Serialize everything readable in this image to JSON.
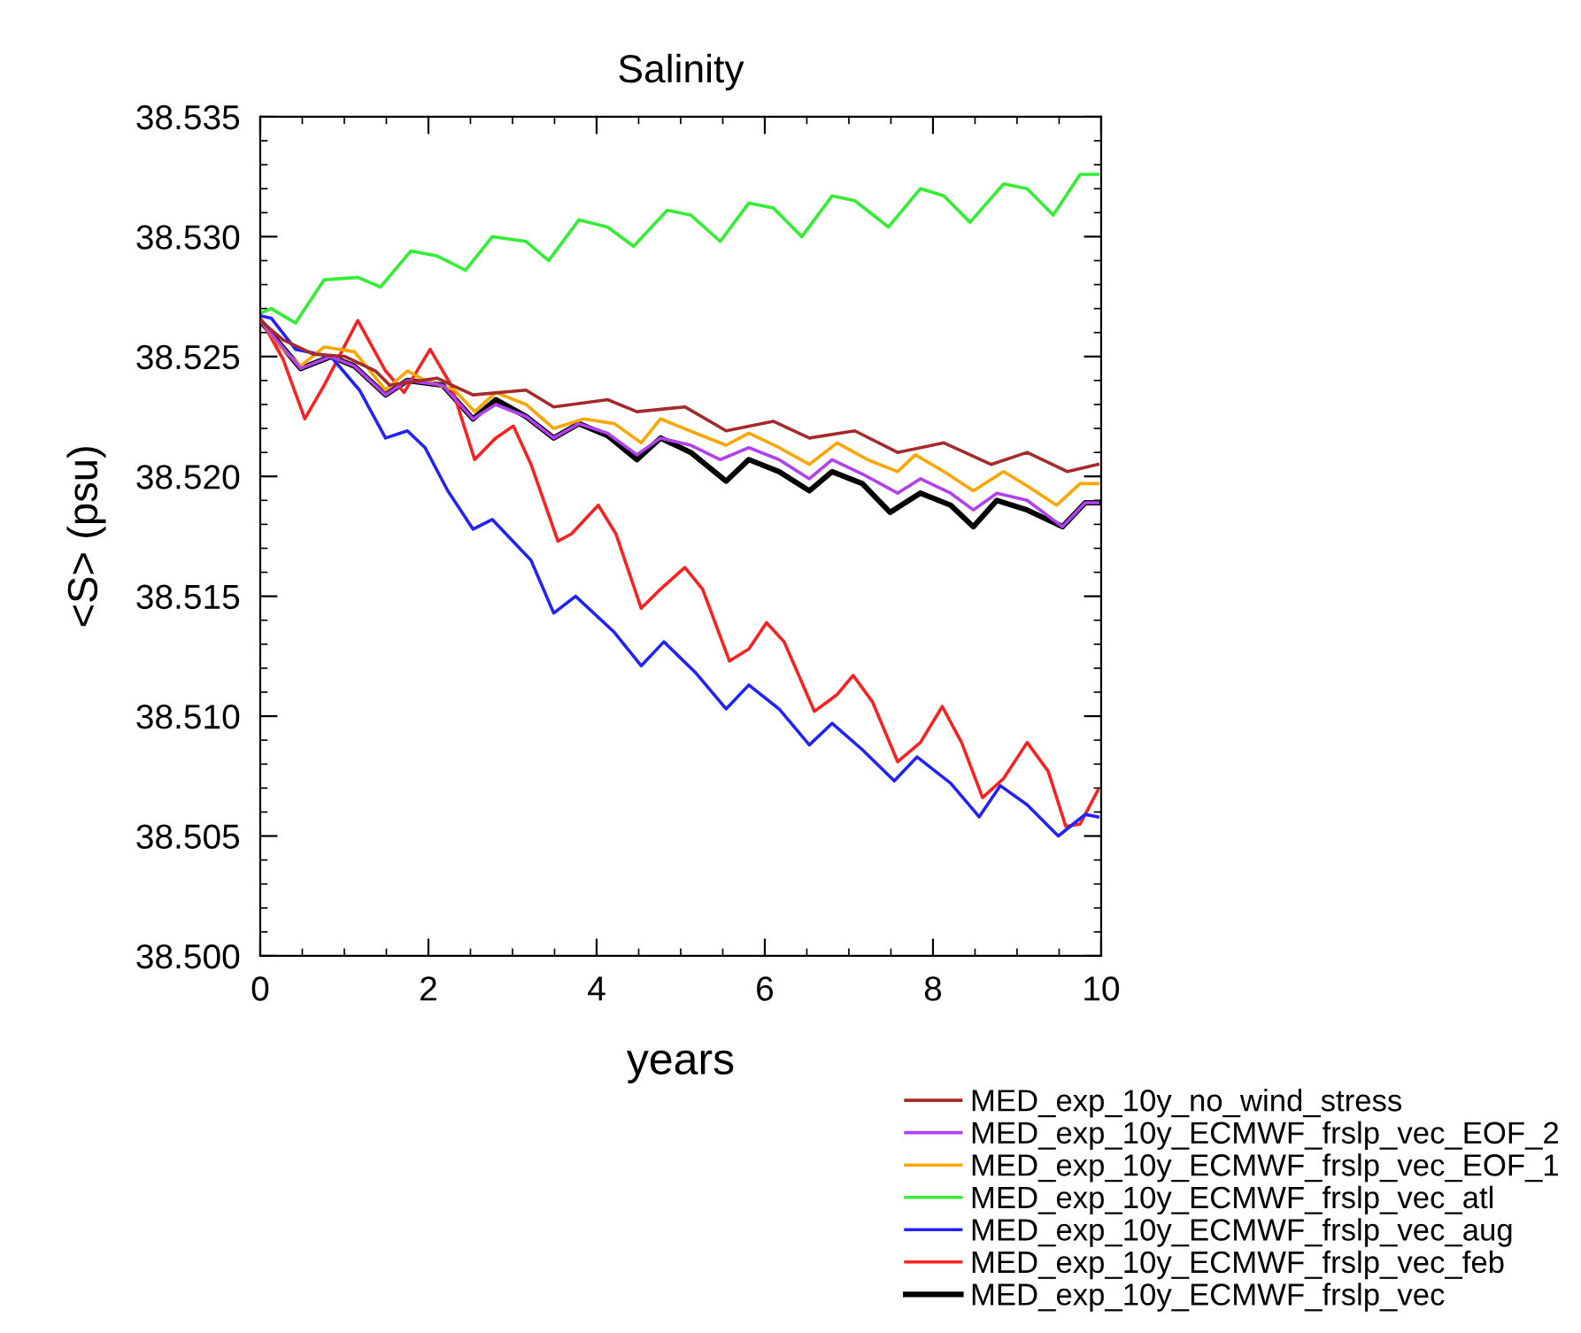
{
  "chart_data": {
    "type": "line",
    "title": "Salinity",
    "xlabel": "years",
    "ylabel": "<S> (psu)",
    "xlim": [
      0,
      10
    ],
    "xticks": [
      0,
      2,
      4,
      6,
      8,
      10
    ],
    "ylim": [
      38.5,
      38.535
    ],
    "yticks": [
      {
        "value": 38.5,
        "label": "38.500"
      },
      38.505,
      {
        "value": 38.51,
        "label": "38.510"
      },
      38.515,
      {
        "value": 38.52,
        "label": "38.520"
      },
      38.525,
      {
        "value": 38.53,
        "label": "38.530"
      },
      38.535
    ],
    "grid": false,
    "legend": "bottom right",
    "marker": "none",
    "line_style": "solid",
    "series": [
      {
        "name": "MED_exp_10y_no_wind_stress",
        "color": "#a52a2a",
        "x": [
          0,
          0.27,
          0.63,
          1.01,
          1.37,
          1.54,
          2.1,
          2.53,
          3.16,
          3.49,
          4.13,
          4.48,
          5.05,
          5.54,
          6.1,
          6.53,
          7.07,
          7.58,
          8.13,
          8.69,
          9.12,
          9.6,
          9.96
        ],
        "values": [
          38.5265,
          38.5257,
          38.5251,
          38.525,
          38.5244,
          38.5238,
          38.5241,
          38.5234,
          38.5236,
          38.5229,
          38.5232,
          38.5227,
          38.5229,
          38.5219,
          38.5223,
          38.5216,
          38.5219,
          38.521,
          38.5214,
          38.5205,
          38.521,
          38.5202,
          38.5205
        ]
      },
      {
        "name": "MED_exp_10y_ECMWF_frslp_vec_EOF_2",
        "color": "#b040f0",
        "x": [
          0,
          0.48,
          0.84,
          1.12,
          1.49,
          1.75,
          2.17,
          2.53,
          2.8,
          3.16,
          3.49,
          3.79,
          4.13,
          4.48,
          4.76,
          5.12,
          5.47,
          5.81,
          6.17,
          6.53,
          6.8,
          7.16,
          7.58,
          7.85,
          8.21,
          8.48,
          8.76,
          9.12,
          9.54,
          9.81,
          9.96
        ],
        "values": [
          38.5265,
          38.5245,
          38.525,
          38.5246,
          38.5234,
          38.524,
          38.5238,
          38.5224,
          38.523,
          38.5225,
          38.5216,
          38.5222,
          38.5218,
          38.5209,
          38.5216,
          38.5213,
          38.5207,
          38.5212,
          38.5207,
          38.5199,
          38.5207,
          38.5201,
          38.5193,
          38.5199,
          38.5193,
          38.5186,
          38.5193,
          38.519,
          38.5179,
          38.5189,
          38.5189
        ]
      },
      {
        "name": "MED_exp_10y_ECMWF_frslp_vec_EOF_1",
        "color": "#ffa500",
        "x": [
          0,
          0.27,
          0.48,
          0.76,
          1.12,
          1.49,
          1.75,
          1.96,
          2.31,
          2.55,
          2.8,
          3.16,
          3.49,
          3.85,
          4.21,
          4.53,
          4.76,
          5.18,
          5.54,
          5.81,
          6.17,
          6.53,
          6.86,
          7.22,
          7.58,
          7.79,
          8.13,
          8.48,
          8.84,
          9.12,
          9.47,
          9.75,
          9.96
        ],
        "values": [
          38.5265,
          38.5253,
          38.5246,
          38.5254,
          38.5252,
          38.5236,
          38.5244,
          38.524,
          38.5236,
          38.5227,
          38.5235,
          38.523,
          38.522,
          38.5224,
          38.5222,
          38.5214,
          38.5224,
          38.5218,
          38.5213,
          38.5218,
          38.5212,
          38.5205,
          38.5214,
          38.5207,
          38.5202,
          38.5209,
          38.5202,
          38.5194,
          38.5202,
          38.5196,
          38.5188,
          38.5197,
          38.5197
        ]
      },
      {
        "name": "MED_exp_10y_ECMWF_frslp_vec_atl",
        "color": "#33ee33",
        "x": [
          0,
          0.13,
          0.42,
          0.76,
          1.16,
          1.43,
          1.79,
          2.1,
          2.44,
          2.76,
          3.16,
          3.43,
          3.79,
          4.13,
          4.44,
          4.84,
          5.12,
          5.47,
          5.81,
          6.1,
          6.44,
          6.8,
          7.07,
          7.47,
          7.85,
          8.13,
          8.44,
          8.84,
          9.12,
          9.43,
          9.75,
          9.96
        ],
        "values": [
          38.5268,
          38.527,
          38.5264,
          38.5282,
          38.5283,
          38.5279,
          38.5294,
          38.5292,
          38.5286,
          38.53,
          38.5298,
          38.529,
          38.5307,
          38.5304,
          38.5296,
          38.5311,
          38.5309,
          38.5298,
          38.5314,
          38.5312,
          38.53,
          38.5317,
          38.5315,
          38.5304,
          38.532,
          38.5317,
          38.5306,
          38.5322,
          38.532,
          38.5309,
          38.5326,
          38.5326
        ]
      },
      {
        "name": "MED_exp_10y_ECMWF_frslp_vec_aug",
        "color": "#2222ff",
        "x": [
          0,
          0.13,
          0.42,
          0.84,
          1.18,
          1.49,
          1.75,
          1.96,
          2.23,
          2.53,
          2.76,
          3.22,
          3.49,
          3.75,
          4.21,
          4.53,
          4.8,
          5.18,
          5.54,
          5.81,
          6.17,
          6.53,
          6.8,
          7.16,
          7.54,
          7.81,
          8.21,
          8.55,
          8.8,
          9.12,
          9.49,
          9.81,
          9.96
        ],
        "values": [
          38.5267,
          38.5266,
          38.5253,
          38.525,
          38.5236,
          38.5216,
          38.5219,
          38.5212,
          38.5194,
          38.5178,
          38.5182,
          38.5165,
          38.5143,
          38.515,
          38.5135,
          38.5121,
          38.5131,
          38.5118,
          38.5103,
          38.5113,
          38.5103,
          38.5088,
          38.5097,
          38.5086,
          38.5073,
          38.5083,
          38.5072,
          38.5058,
          38.5071,
          38.5063,
          38.505,
          38.5059,
          38.5058
        ]
      },
      {
        "name": "MED_exp_10y_ECMWF_frslp_vec_feb",
        "color": "#ff2020",
        "x": [
          0,
          0.27,
          0.53,
          0.76,
          1.16,
          1.49,
          1.71,
          2.02,
          2.27,
          2.55,
          2.8,
          3.01,
          3.22,
          3.54,
          3.7,
          4.02,
          4.23,
          4.53,
          4.76,
          5.05,
          5.26,
          5.58,
          5.81,
          6.02,
          6.23,
          6.59,
          6.86,
          7.05,
          7.28,
          7.58,
          7.85,
          8.11,
          8.34,
          8.59,
          8.84,
          9.12,
          9.37,
          9.58,
          9.75,
          9.96
        ],
        "values": [
          38.5266,
          38.5249,
          38.5224,
          38.5238,
          38.5265,
          38.5244,
          38.5235,
          38.5253,
          38.5238,
          38.5207,
          38.5216,
          38.5221,
          38.5205,
          38.5173,
          38.5176,
          38.5188,
          38.5176,
          38.5145,
          38.5153,
          38.5162,
          38.5153,
          38.5123,
          38.5128,
          38.5139,
          38.5131,
          38.5102,
          38.5109,
          38.5117,
          38.5106,
          38.5081,
          38.5089,
          38.5104,
          38.5089,
          38.5066,
          38.5074,
          38.5089,
          38.5077,
          38.5054,
          38.5055,
          38.5069
        ]
      },
      {
        "name": "MED_exp_10y_ECMWF_frslp_vec",
        "color": "#000000",
        "x": [
          0,
          0.48,
          0.84,
          1.12,
          1.49,
          1.75,
          2.17,
          2.53,
          2.8,
          3.16,
          3.49,
          3.79,
          4.13,
          4.48,
          4.76,
          5.12,
          5.54,
          5.81,
          6.17,
          6.53,
          6.8,
          7.16,
          7.49,
          7.85,
          8.21,
          8.48,
          8.76,
          9.12,
          9.54,
          9.81,
          9.96
        ],
        "values": [
          38.5265,
          38.5245,
          38.525,
          38.5246,
          38.5234,
          38.524,
          38.5238,
          38.5224,
          38.5232,
          38.5225,
          38.5216,
          38.5222,
          38.5217,
          38.5207,
          38.5216,
          38.521,
          38.5198,
          38.5207,
          38.5202,
          38.5194,
          38.5202,
          38.5197,
          38.5185,
          38.5193,
          38.5188,
          38.5179,
          38.519,
          38.5186,
          38.5179,
          38.5189,
          38.5189
        ]
      }
    ]
  }
}
